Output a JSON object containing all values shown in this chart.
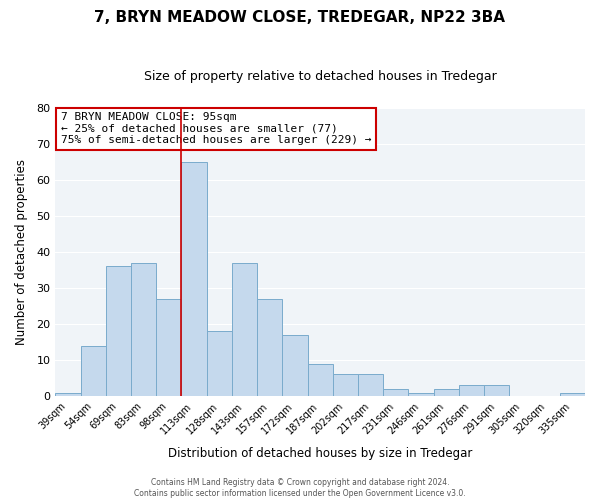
{
  "title": "7, BRYN MEADOW CLOSE, TREDEGAR, NP22 3BA",
  "subtitle": "Size of property relative to detached houses in Tredegar",
  "xlabel": "Distribution of detached houses by size in Tredegar",
  "ylabel": "Number of detached properties",
  "categories": [
    "39sqm",
    "54sqm",
    "69sqm",
    "83sqm",
    "98sqm",
    "113sqm",
    "128sqm",
    "143sqm",
    "157sqm",
    "172sqm",
    "187sqm",
    "202sqm",
    "217sqm",
    "231sqm",
    "246sqm",
    "261sqm",
    "276sqm",
    "291sqm",
    "305sqm",
    "320sqm",
    "335sqm"
  ],
  "values": [
    1,
    14,
    36,
    37,
    27,
    65,
    18,
    37,
    27,
    17,
    9,
    6,
    6,
    2,
    1,
    2,
    3,
    3,
    0,
    0,
    1
  ],
  "bar_color": "#c5d9ed",
  "bar_edge_color": "#7aabcc",
  "vline_color": "#cc0000",
  "annotation_text": "7 BRYN MEADOW CLOSE: 95sqm\n← 25% of detached houses are smaller (77)\n75% of semi-detached houses are larger (229) →",
  "annotation_box_color": "#ffffff",
  "annotation_box_edge": "#cc0000",
  "ylim": [
    0,
    80
  ],
  "yticks": [
    0,
    10,
    20,
    30,
    40,
    50,
    60,
    70,
    80
  ],
  "footer_line1": "Contains HM Land Registry data © Crown copyright and database right 2024.",
  "footer_line2": "Contains public sector information licensed under the Open Government Licence v3.0.",
  "bg_color": "#f0f4f8",
  "fig_bg_color": "#ffffff",
  "grid_color": "#ffffff",
  "title_fontsize": 11,
  "subtitle_fontsize": 9
}
